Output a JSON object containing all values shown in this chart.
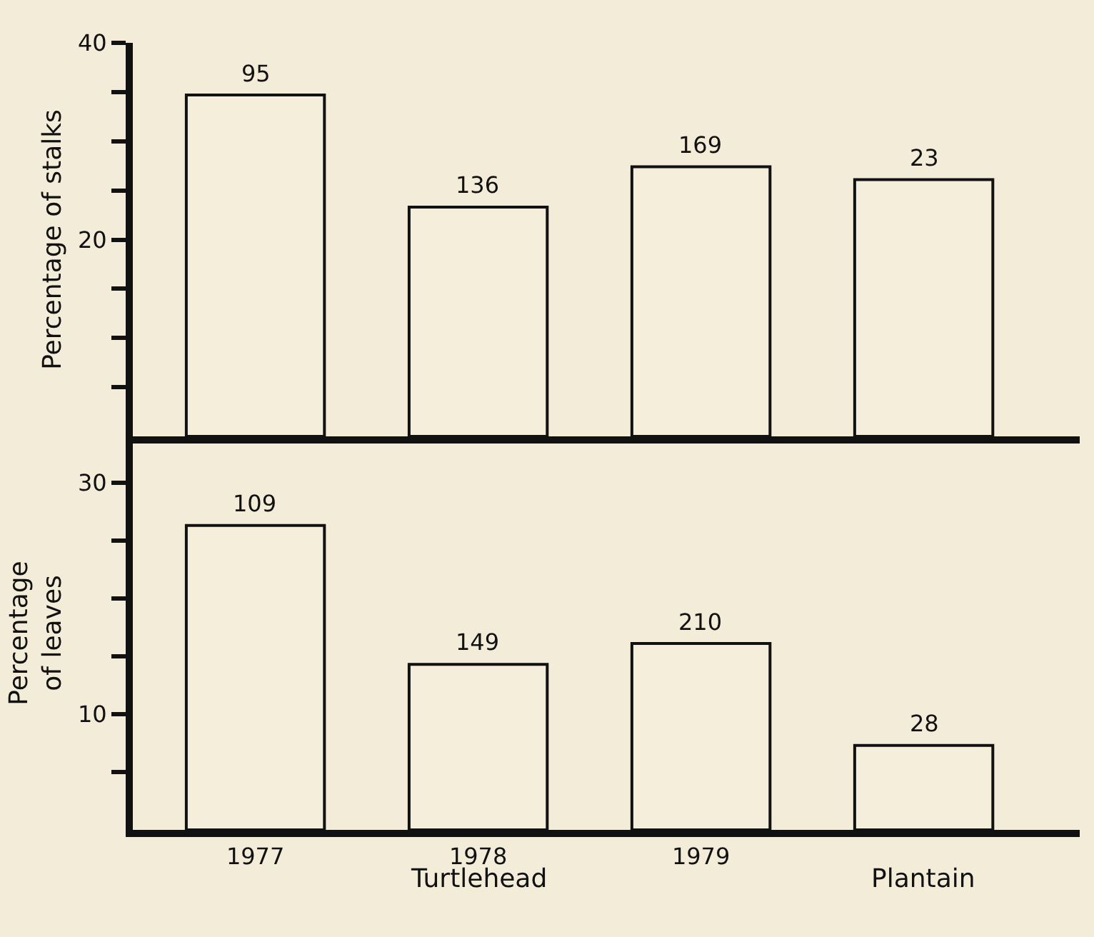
{
  "chart_data": [
    {
      "type": "bar",
      "ylabel": "Percentage of stalks",
      "categories": [
        "1977",
        "1978",
        "1979",
        null
      ],
      "values": [
        34.7,
        23.3,
        27.4,
        26.1
      ],
      "color": "#f4eedb",
      "ylim": [
        0,
        40
      ],
      "yticks": [
        {
          "value": 5,
          "label": null
        },
        {
          "value": 10,
          "label": null
        },
        {
          "value": 15,
          "label": null
        },
        20,
        {
          "value": 25,
          "label": null
        },
        {
          "value": 30,
          "label": null
        },
        {
          "value": 35,
          "label": null
        },
        40
      ],
      "tick_labels": "y",
      "grid": false,
      "legend": false,
      "annotations": [
        {
          "text": "95",
          "x": "1977",
          "y": 34.7
        },
        {
          "text": "136",
          "x": "1978",
          "y": 23.3
        },
        {
          "text": "169",
          "x": "1979",
          "y": 27.4
        },
        {
          "text": "23",
          "y": 26.1
        }
      ]
    },
    {
      "type": "bar",
      "ylabel": "Percentage\nof leaves",
      "categories": [
        "1977",
        "1978",
        "1979",
        null
      ],
      "values": [
        26.3,
        14.3,
        16.1,
        7.3
      ],
      "color": "#f4eedb",
      "ylim": [
        0,
        34
      ],
      "yticks": [
        {
          "value": 5,
          "label": null
        },
        10,
        {
          "value": 15,
          "label": null
        },
        {
          "value": 20,
          "label": null
        },
        {
          "value": 25,
          "label": null
        },
        30
      ],
      "grid": false,
      "legend": false,
      "annotations": [
        {
          "text": "109",
          "x": "1977",
          "y": 26.3
        },
        {
          "text": "149",
          "x": "1978",
          "y": 14.3
        },
        {
          "text": "210",
          "x": "1979",
          "y": 16.1
        },
        {
          "text": "28",
          "y": 7.3
        },
        "Turtlehead",
        "Plantain"
      ]
    }
  ]
}
